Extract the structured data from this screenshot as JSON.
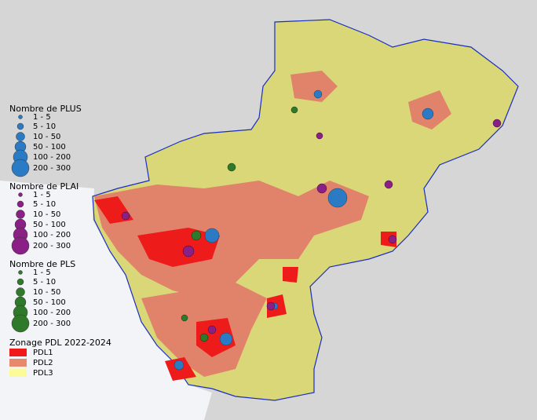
{
  "legend": {
    "groups": [
      {
        "title": "Nombre de PLUS",
        "items": [
          "1 - 5",
          "5 - 10",
          "10 - 50",
          "50 - 100",
          "100 - 200",
          "200 - 300"
        ],
        "color": "#2b7bc4"
      },
      {
        "title": "Nombre de PLAI",
        "items": [
          "1 - 5",
          "5 - 10",
          "10 - 50",
          "50 - 100",
          "100 - 200",
          "200 - 300"
        ],
        "color": "#8a1f86"
      },
      {
        "title": "Nombre de PLS",
        "items": [
          "1 - 5",
          "5 - 10",
          "10 - 50",
          "50 - 100",
          "100 - 200",
          "200 - 300"
        ],
        "color": "#2f7a2a"
      }
    ],
    "zonage": {
      "title": "Zonage PDL 2022-2024",
      "items": [
        {
          "label": "PDL1",
          "color": "#f01818"
        },
        {
          "label": "PDL2",
          "color": "#e8896c"
        },
        {
          "label": "PDL3",
          "color": "#fbfb9a"
        }
      ]
    }
  }
}
